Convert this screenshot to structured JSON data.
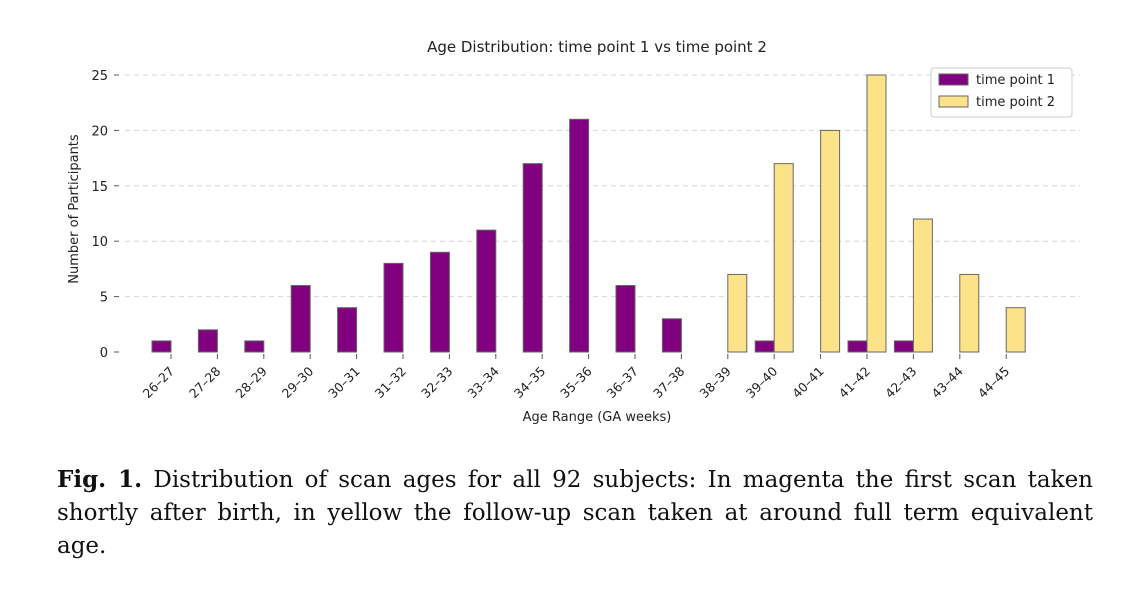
{
  "chart_data": {
    "type": "bar",
    "title": "Age Distribution: time point 1 vs time point 2",
    "xlabel": "Age Range (GA weeks)",
    "ylabel": "Number of Participants",
    "ylim": [
      0,
      25
    ],
    "yticks": [
      0,
      5,
      10,
      15,
      20,
      25
    ],
    "grid": "y-dashed",
    "legend_position": "top-right",
    "categories": [
      "26-27",
      "27-28",
      "28-29",
      "29-30",
      "30-31",
      "31-32",
      "32-33",
      "33-34",
      "34-35",
      "35-36",
      "36-37",
      "37-38",
      "38-39",
      "39-40",
      "40-41",
      "41-42",
      "42-43",
      "43-44",
      "44-45"
    ],
    "series": [
      {
        "name": "time point 1",
        "color": "#800080",
        "values": [
          1,
          2,
          1,
          6,
          4,
          8,
          9,
          11,
          17,
          21,
          6,
          3,
          0,
          1,
          0,
          1,
          1,
          0,
          0
        ]
      },
      {
        "name": "time point 2",
        "color": "#fce38a",
        "values": [
          0,
          0,
          0,
          0,
          0,
          0,
          0,
          0,
          0,
          0,
          0,
          0,
          7,
          17,
          20,
          25,
          12,
          7,
          4
        ]
      }
    ]
  },
  "caption": {
    "label": "Fig. 1.",
    "text": "Distribution of scan ages for all 92 subjects: In magenta the first scan taken shortly after birth, in yellow the follow-up scan taken at around full term equivalent age."
  }
}
